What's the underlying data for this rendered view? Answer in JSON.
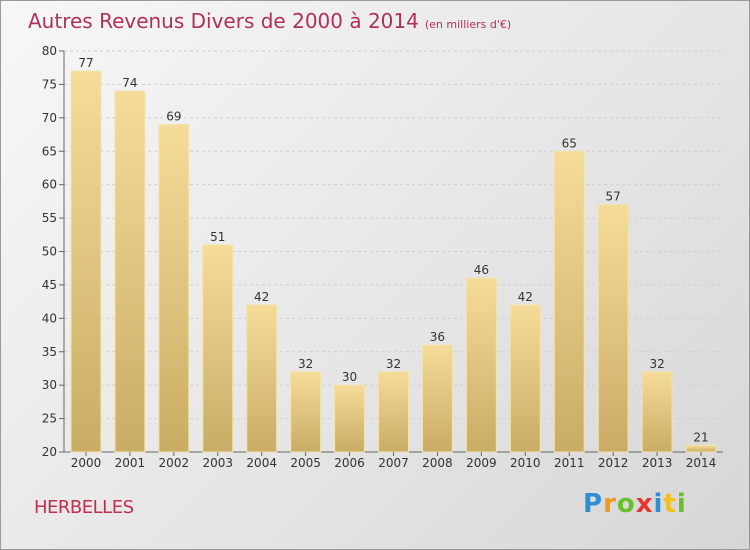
{
  "header": {
    "title": "Autres Revenus Divers de 2000 à 2014",
    "subtitle": "(en milliers d'€)"
  },
  "footer": {
    "commune": "HERBELLES",
    "logo_letters": [
      "P",
      "r",
      "o",
      "x",
      "i",
      "t",
      "i"
    ],
    "logo_colors": [
      "#2f8fd6",
      "#f09a1e",
      "#6abf2a",
      "#e8352f",
      "#2f8fd6",
      "#f0c020",
      "#6abf2a"
    ]
  },
  "chart_data": {
    "type": "bar",
    "title": "Autres Revenus Divers de 2000 à 2014",
    "subtitle": "(en milliers d'€)",
    "categories": [
      "2000",
      "2001",
      "2002",
      "2003",
      "2004",
      "2005",
      "2006",
      "2007",
      "2008",
      "2009",
      "2010",
      "2011",
      "2012",
      "2013",
      "2014"
    ],
    "values": [
      77,
      74,
      69,
      51,
      42,
      32,
      30,
      32,
      36,
      46,
      42,
      65,
      57,
      32,
      21
    ],
    "ylim": [
      20,
      80
    ],
    "yticks": [
      20,
      25,
      30,
      35,
      40,
      45,
      50,
      55,
      60,
      65,
      70,
      75,
      80
    ],
    "grid": true,
    "colors": {
      "bar_light": "#f5dc98",
      "bar_dark": "#c9ac66",
      "grid": "#cfcfcf"
    }
  }
}
